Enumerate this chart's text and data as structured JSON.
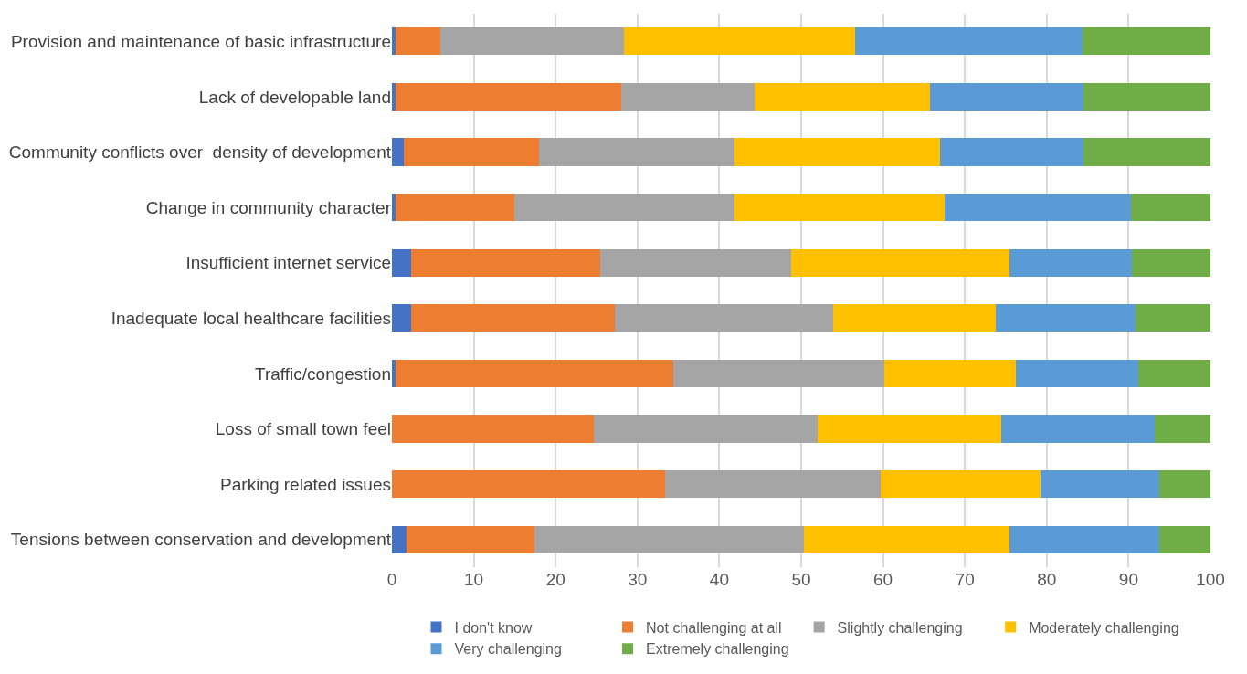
{
  "chart_data": {
    "type": "bar",
    "orientation": "horizontal",
    "stacked": true,
    "categories": [
      "Provision and maintenance of basic infrastructure",
      "Lack of developable land",
      "Community conflicts over  density of development",
      "Change in community character",
      "Insufficient internet service",
      "Inadequate local healthcare facilities",
      "Traffic/congestion",
      "Loss of small town feel",
      "Parking related issues",
      "Tensions between conservation and development"
    ],
    "series": [
      {
        "name": "I don't know",
        "color": "#4472c4",
        "values": [
          0.4,
          0.4,
          1.4,
          0.4,
          2.3,
          2.3,
          0.4,
          0,
          0,
          1.8
        ]
      },
      {
        "name": "Not challenging at all",
        "color": "#ed7d31",
        "values": [
          5.5,
          27.6,
          16.6,
          14.6,
          23.2,
          24.9,
          34,
          24.7,
          33.4,
          15.6
        ]
      },
      {
        "name": "Slightly challenging",
        "color": "#a5a5a5",
        "values": [
          22.4,
          16.3,
          23.8,
          26.8,
          23.3,
          26.7,
          25.8,
          27.3,
          26.3,
          32.9
        ]
      },
      {
        "name": "Moderately challenging",
        "color": "#ffc000",
        "values": [
          28.3,
          21.4,
          25.2,
          25.7,
          26.7,
          19.9,
          16,
          22.4,
          19.5,
          25.2
        ]
      },
      {
        "name": "Very challenging",
        "color": "#5b9bd5",
        "values": [
          27.8,
          18.8,
          17.5,
          22.8,
          14.9,
          17,
          15,
          18.8,
          14.5,
          18.3
        ]
      },
      {
        "name": "Extremely challenging",
        "color": "#70ad47",
        "values": [
          15.6,
          15.5,
          15.5,
          9.7,
          9.6,
          9.2,
          8.8,
          6.8,
          6.3,
          6.2
        ]
      }
    ],
    "xlim": [
      0,
      100
    ],
    "xticks": [
      0,
      10,
      20,
      30,
      40,
      50,
      60,
      70,
      80,
      90,
      100
    ],
    "grid": "x",
    "legend": "bottom"
  }
}
